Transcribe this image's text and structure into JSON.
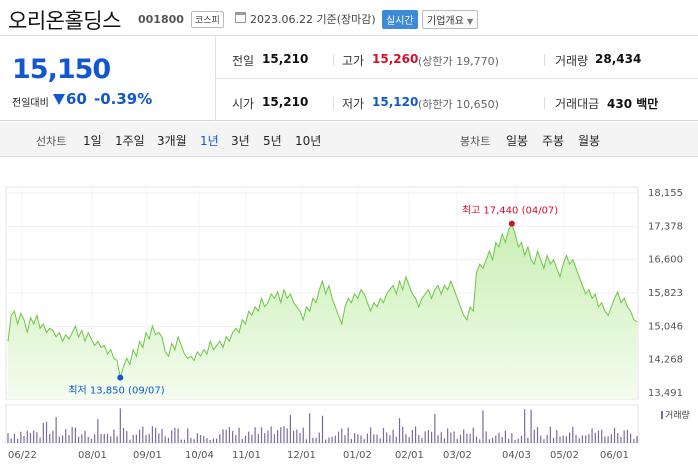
{
  "header": {
    "company_name": "오리온홀딩스",
    "code": "001800",
    "market": "코스피",
    "date": "2023.06.22",
    "date_suffix": "기준(장마감)",
    "realtime_label": "실시간",
    "overview_label": "기업개요"
  },
  "price": {
    "current": "15,150",
    "change_label": "전일대비",
    "change_value": "60",
    "change_pct": "-0.39%"
  },
  "stats": {
    "prev_close": {
      "label": "전일",
      "value": "15,210"
    },
    "open": {
      "label": "시가",
      "value": "15,210"
    },
    "high": {
      "label": "고가",
      "value": "15,260",
      "sub": "(상한가 19,770)"
    },
    "low": {
      "label": "저가",
      "value": "15,120",
      "sub": "(하한가 10,650)"
    },
    "volume": {
      "label": "거래량",
      "value": "28,434"
    },
    "amount": {
      "label": "거래대금",
      "value": "430 백만"
    }
  },
  "period_bar": {
    "line_chart_label": "선차트",
    "periods": [
      "1일",
      "1주일",
      "3개월",
      "1년",
      "3년",
      "5년",
      "10년"
    ],
    "active_period": "1년",
    "candle_label": "봉차트",
    "candles": [
      "일봉",
      "주봉",
      "월봉"
    ]
  },
  "chart_data": {
    "type": "area",
    "y_ticks": [
      "18,155",
      "17,378",
      "16,600",
      "15,823",
      "15,046",
      "14,268",
      "13,491"
    ],
    "ylim": [
      13491,
      18155
    ],
    "x_ticks": [
      "06/22",
      "08/01",
      "09/01",
      "10/04",
      "11/01",
      "12/01",
      "01/02",
      "02/01",
      "03/02",
      "04/03",
      "05/02",
      "06/01"
    ],
    "max_annotation": "최고 17,440 (04/07)",
    "min_annotation": "최저 13,850 (09/07)",
    "volume_legend": "거래량",
    "colors": {
      "line": "#6cc644",
      "fill_top": "#c9efb3",
      "fill_bottom": "#f4fcef",
      "max": "#d5102d",
      "min": "#1158cf",
      "volume": "#7a6a9a"
    }
  }
}
